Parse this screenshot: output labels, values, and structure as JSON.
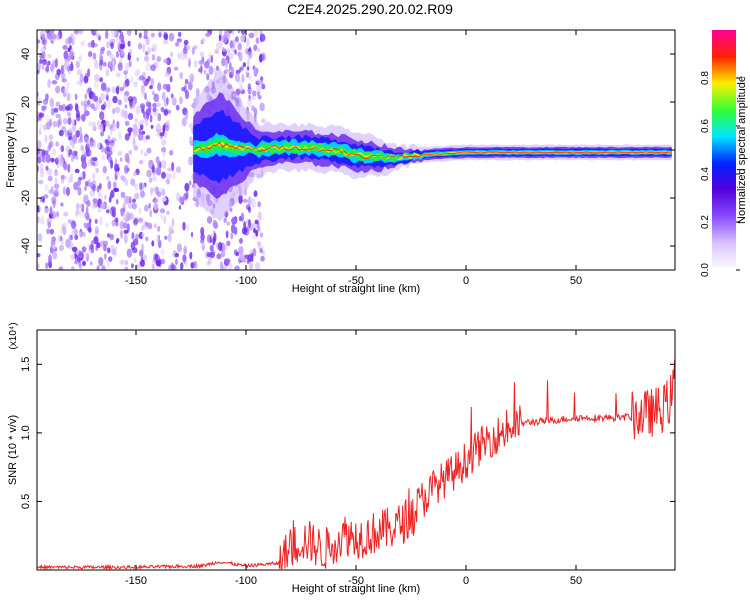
{
  "page_title": "C2E4.2025.290.20.02.R09",
  "chart_data": [
    {
      "type": "heatmap",
      "name": "spectrogram",
      "xlabel": "Height of straight line (km)",
      "ylabel": "Frequency (Hz)",
      "xlim": [
        -195,
        95
      ],
      "ylim": [
        -50,
        50
      ],
      "xticks": [
        -150,
        -100,
        -50,
        0,
        50
      ],
      "xtick_labels": [
        "-150",
        "-100",
        "-50",
        "0",
        "50"
      ],
      "yticks": [
        -40,
        -20,
        0,
        20,
        40
      ],
      "ytick_labels": [
        "-40",
        "-20",
        "0",
        "20",
        "40"
      ],
      "colorbar": {
        "label": "Normalized spectral amplitude",
        "range": [
          0,
          1
        ],
        "ticks": [
          0.0,
          0.2,
          0.4,
          0.6,
          0.8
        ],
        "tick_labels": [
          "0.0",
          "0.2",
          "0.4",
          "0.6",
          "0.8"
        ],
        "colors": [
          "#ffffff",
          "#d9c2ff",
          "#8a4dff",
          "#5500dd",
          "#0022ff",
          "#00e5ff",
          "#33ff33",
          "#ffee00",
          "#ff2200",
          "#ff0099"
        ]
      },
      "noise_region": {
        "x_range": [
          -195,
          -92
        ],
        "freq_range": [
          -50,
          50
        ]
      },
      "signal_track": [
        {
          "x": -125,
          "f": 0,
          "spread": 12
        },
        {
          "x": -112,
          "f": 2,
          "spread": 20
        },
        {
          "x": -95,
          "f": 0,
          "spread": 7
        },
        {
          "x": -85,
          "f": 1,
          "spread": 6
        },
        {
          "x": -75,
          "f": 1,
          "spread": 6
        },
        {
          "x": -60,
          "f": 0,
          "spread": 6
        },
        {
          "x": -50,
          "f": -2,
          "spread": 6
        },
        {
          "x": -40,
          "f": -3,
          "spread": 5
        },
        {
          "x": -30,
          "f": -3,
          "spread": 3
        },
        {
          "x": -20,
          "f": -2,
          "spread": 2
        },
        {
          "x": 0,
          "f": -1,
          "spread": 2
        },
        {
          "x": 30,
          "f": -1,
          "spread": 2
        },
        {
          "x": 60,
          "f": -1,
          "spread": 2
        },
        {
          "x": 94,
          "f": -1,
          "spread": 2
        }
      ]
    },
    {
      "type": "line",
      "name": "snr",
      "xlabel": "Height of straight line (km)",
      "ylabel": "SNR (10 * v/v)",
      "scale_label": "(x10⁴)",
      "xlim": [
        -195,
        95
      ],
      "ylim": [
        0,
        1.75
      ],
      "xticks": [
        -150,
        -100,
        -50,
        0,
        50
      ],
      "xtick_labels": [
        "-150",
        "-100",
        "-50",
        "0",
        "50"
      ],
      "yticks": [
        0.5,
        1.0,
        1.5
      ],
      "ytick_labels": [
        "0.5",
        "1.0",
        "1.5"
      ],
      "color": "#ee2222",
      "series": [
        {
          "name": "SNR envelope",
          "x": [
            -195,
            -150,
            -120,
            -112,
            -100,
            -85,
            -80,
            -75,
            -70,
            -65,
            -60,
            -55,
            -50,
            -45,
            -40,
            -35,
            -30,
            -25,
            -20,
            -15,
            -10,
            -5,
            0,
            5,
            10,
            15,
            20,
            25,
            30,
            40,
            50,
            60,
            70,
            80,
            85,
            90,
            93,
            95
          ],
          "y": [
            0.02,
            0.02,
            0.03,
            0.06,
            0.03,
            0.05,
            0.15,
            0.22,
            0.2,
            0.14,
            0.2,
            0.26,
            0.24,
            0.25,
            0.28,
            0.3,
            0.33,
            0.4,
            0.5,
            0.6,
            0.66,
            0.72,
            0.8,
            0.88,
            0.95,
            0.99,
            1.03,
            1.07,
            1.08,
            1.09,
            1.11,
            1.11,
            1.11,
            1.13,
            1.15,
            1.18,
            1.25,
            1.4
          ]
        }
      ]
    }
  ]
}
